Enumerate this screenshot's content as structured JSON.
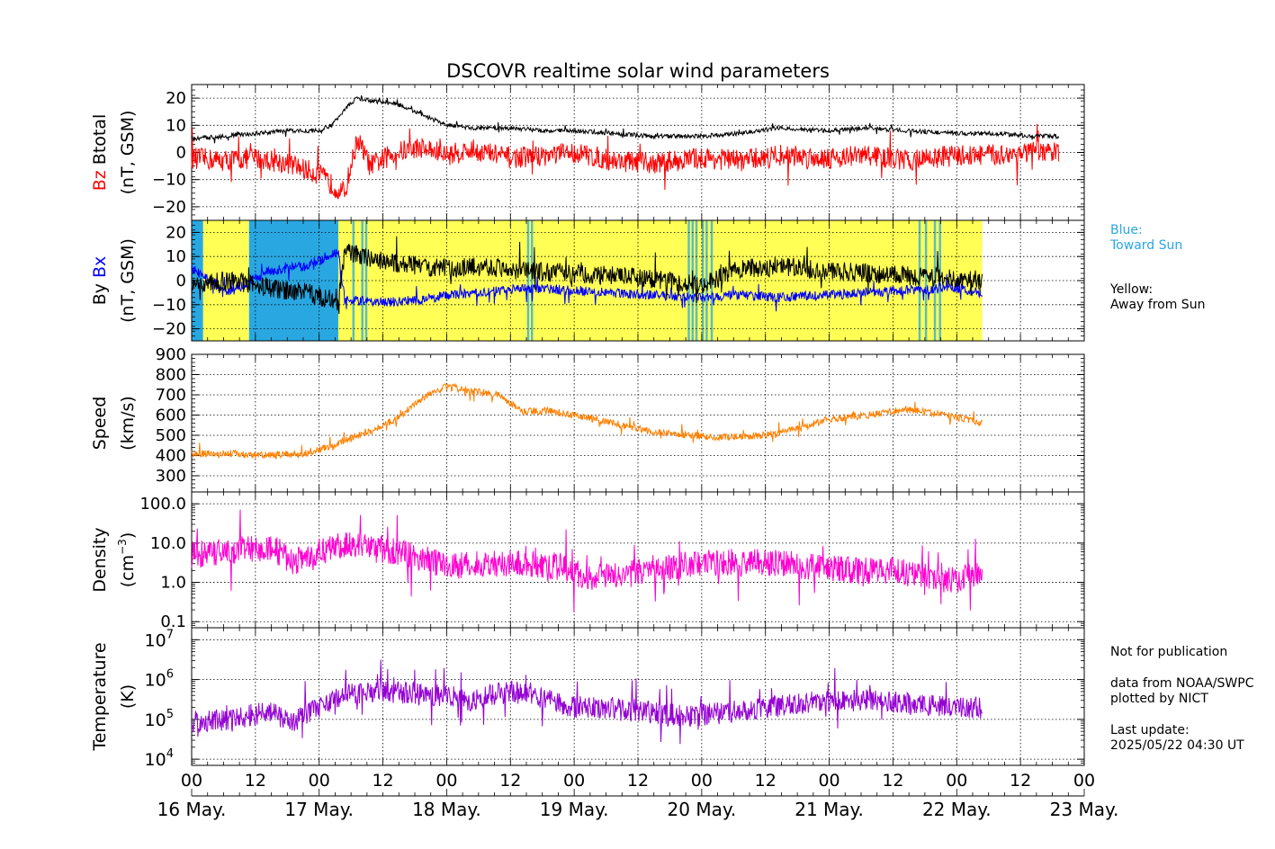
{
  "title": "DSCOVR realtime solar wind parameters",
  "x_ticks": [
    "00",
    "12",
    "00",
    "12",
    "00",
    "12",
    "00",
    "12",
    "00",
    "12",
    "00",
    "12",
    "00",
    "12",
    "00"
  ],
  "dates": [
    "16 May.",
    "17 May.",
    "18 May.",
    "19 May.",
    "20 May.",
    "21 May.",
    "22 May.",
    "23 May."
  ],
  "legend": {
    "blue_title": "Blue:",
    "blue_text": "Toward Sun",
    "yellow_title": "Yellow:",
    "yellow_text": "Away from Sun"
  },
  "notes": {
    "not_for_pub": "Not for publication",
    "data_from": "data from NOAA/SWPC",
    "plotted_by": "plotted by NICT",
    "last_update_label": "Last update:",
    "last_update_value": "2025/05/22 04:30 UT"
  },
  "panels": [
    {
      "id": "bfield",
      "ylabel_colored": "Bz",
      "ylabel_main": "Btotal",
      "ylabel_units": "(nT, GSM)"
    },
    {
      "id": "bxby",
      "ylabel_colored": "Bx",
      "ylabel_main": "By",
      "ylabel_units": "(nT, GSM)"
    },
    {
      "id": "speed",
      "ylabel_main": "Speed",
      "ylabel_units": "(km/s)"
    },
    {
      "id": "density",
      "ylabel_main": "Density",
      "ylabel_units": "(cm"
    },
    {
      "id": "temp",
      "ylabel_main": "Temperature",
      "ylabel_units": "(K)"
    }
  ],
  "colors": {
    "bz": "#ff0000",
    "bt": "#000000",
    "bx": "#0000ff",
    "by": "#000000",
    "speed": "#ff8000",
    "density": "#ff00d0",
    "temp": "#9400d3",
    "toward": "#29a7e1",
    "away": "#ffff55",
    "legend_blue": "#29a7e1"
  },
  "chart_data": [
    {
      "type": "line",
      "panel": "bfield",
      "xlabel": "",
      "ylabel": "Bz Btotal (nT, GSM)",
      "ylim": [
        -25,
        25
      ],
      "yticks": [
        -20,
        -10,
        0,
        10,
        20
      ],
      "x_units": "days since 16 May 00 UT",
      "series": [
        {
          "name": "Btotal",
          "x": [
            0,
            0.25,
            0.5,
            0.75,
            1,
            1.1,
            1.2,
            1.3,
            1.4,
            1.6,
            1.8,
            2,
            2.2,
            2.5,
            2.8,
            3,
            3.3,
            3.6,
            4,
            4.3,
            4.6,
            5,
            5.3,
            5.6,
            6,
            6.3,
            6.6,
            6.8
          ],
          "y": [
            5,
            6,
            7,
            8,
            8,
            10,
            16,
            20,
            19,
            18,
            14,
            10,
            9,
            9,
            8,
            8,
            7,
            6,
            6,
            7,
            9,
            8,
            9,
            8,
            7,
            7,
            6,
            6
          ]
        },
        {
          "name": "Bz",
          "x": [
            0,
            0.25,
            0.5,
            0.75,
            1,
            1.1,
            1.2,
            1.3,
            1.4,
            1.6,
            1.8,
            2,
            2.2,
            2.5,
            2.8,
            3,
            3.3,
            3.6,
            4,
            4.3,
            4.6,
            5,
            5.3,
            5.6,
            6,
            6.3,
            6.6,
            6.8
          ],
          "y": [
            -2,
            -3,
            -2,
            -4,
            -8,
            -12,
            -15,
            5,
            -5,
            0,
            2,
            -1,
            1,
            -2,
            -1,
            0,
            -3,
            -4,
            -2,
            -3,
            -1,
            -2,
            -1,
            -3,
            -1,
            -1,
            0,
            0
          ]
        }
      ]
    },
    {
      "type": "line",
      "panel": "bxby",
      "ylabel": "By Bx (nT, GSM)",
      "ylim": [
        -25,
        25
      ],
      "yticks": [
        -20,
        -10,
        0,
        10,
        20
      ],
      "sector": [
        {
          "from": 0,
          "to": 0.09,
          "state": "toward"
        },
        {
          "from": 0.09,
          "to": 0.45,
          "state": "away"
        },
        {
          "from": 0.45,
          "to": 1.15,
          "state": "toward"
        },
        {
          "from": 1.15,
          "to": 6.2,
          "state": "away"
        }
      ],
      "series": [
        {
          "name": "By",
          "x": [
            0,
            0.3,
            0.6,
            0.9,
            1.1,
            1.15,
            1.2,
            1.5,
            1.8,
            2,
            2.3,
            2.6,
            3,
            3.3,
            3.6,
            4,
            4.3,
            4.6,
            5,
            5.3,
            5.6,
            6,
            6.2
          ],
          "y": [
            -2,
            0,
            -3,
            -5,
            -8,
            -10,
            12,
            8,
            6,
            5,
            6,
            4,
            3,
            2,
            1,
            -2,
            5,
            6,
            4,
            3,
            2,
            1,
            0
          ]
        },
        {
          "name": "Bx",
          "x": [
            0,
            0.3,
            0.6,
            0.9,
            1.1,
            1.15,
            1.2,
            1.5,
            1.8,
            2,
            2.3,
            2.6,
            3,
            3.3,
            3.6,
            4,
            4.3,
            4.6,
            5,
            5.3,
            5.6,
            6,
            6.2
          ],
          "y": [
            5,
            -5,
            4,
            6,
            11,
            12,
            -8,
            -9,
            -8,
            -6,
            -5,
            -3,
            -4,
            -5,
            -6,
            -7,
            -6,
            -7,
            -6,
            -5,
            -4,
            -3,
            -5
          ]
        }
      ]
    },
    {
      "type": "line",
      "panel": "speed",
      "ylabel": "Speed (km/s)",
      "ylim": [
        220,
        900
      ],
      "yticks": [
        300,
        400,
        500,
        600,
        700,
        800,
        900
      ],
      "series": [
        {
          "name": "Speed",
          "x": [
            0,
            0.3,
            0.6,
            0.9,
            1.1,
            1.4,
            1.6,
            1.8,
            2,
            2.2,
            2.4,
            2.6,
            2.8,
            3,
            3.3,
            3.6,
            3.9,
            4.2,
            4.5,
            4.8,
            5,
            5.3,
            5.6,
            5.8,
            6,
            6.2
          ],
          "y": [
            410,
            410,
            400,
            410,
            450,
            520,
            580,
            680,
            740,
            720,
            700,
            620,
            620,
            600,
            560,
            520,
            500,
            490,
            500,
            540,
            580,
            600,
            630,
            610,
            590,
            560
          ]
        }
      ]
    },
    {
      "type": "line",
      "panel": "density",
      "ylabel": "Density (cm^-3)",
      "yscale": "log",
      "ylim": [
        0.07,
        200
      ],
      "yticks": [
        0.1,
        1.0,
        10.0,
        100.0
      ],
      "series": [
        {
          "name": "Density",
          "x": [
            0,
            0.3,
            0.6,
            0.8,
            1,
            1.2,
            1.4,
            1.6,
            1.8,
            2,
            2.3,
            2.6,
            2.9,
            3.1,
            3.4,
            3.7,
            4,
            4.3,
            4.6,
            4.9,
            5.2,
            5.5,
            5.8,
            6,
            6.2
          ],
          "y": [
            5,
            6,
            8,
            3,
            6,
            10,
            8,
            6,
            4,
            2.5,
            3,
            3,
            2.5,
            1.2,
            1.5,
            2.5,
            3,
            3.5,
            3,
            2.5,
            2,
            2,
            1.3,
            1.2,
            1.5
          ]
        }
      ]
    },
    {
      "type": "line",
      "panel": "temp",
      "ylabel": "Temperature (K)",
      "yscale": "log",
      "ylim": [
        7000,
        20000000
      ],
      "yticks": [
        10000,
        100000,
        1000000,
        10000000
      ],
      "series": [
        {
          "name": "Temperature",
          "x": [
            0,
            0.3,
            0.6,
            0.8,
            1,
            1.2,
            1.4,
            1.7,
            2,
            2.2,
            2.5,
            2.8,
            3,
            3.3,
            3.6,
            3.9,
            4.2,
            4.5,
            4.8,
            5,
            5.3,
            5.6,
            5.9,
            6.2
          ],
          "y": [
            90000,
            100000,
            150000,
            80000,
            200000,
            400000,
            500000,
            450000,
            400000,
            300000,
            500000,
            300000,
            200000,
            200000,
            150000,
            120000,
            150000,
            200000,
            250000,
            300000,
            300000,
            250000,
            200000,
            200000
          ]
        }
      ]
    }
  ]
}
